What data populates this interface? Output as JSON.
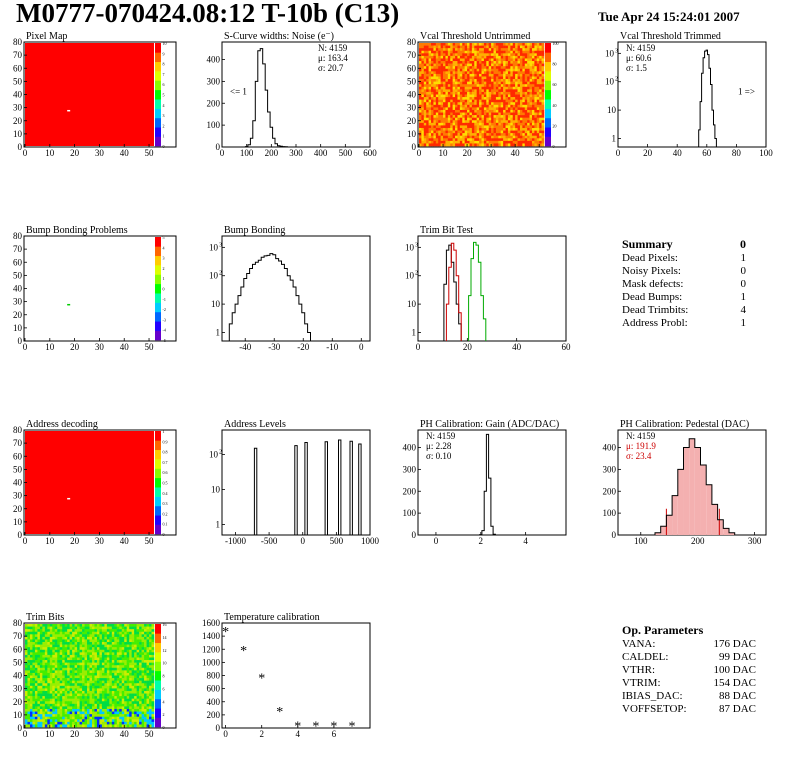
{
  "header": {
    "title": "M0777-070424.08:12 T-10b (C13)",
    "date": "Tue Apr 24 15:24:01 2007"
  },
  "panels": [
    {
      "name": "Pixel Map",
      "type": "heatmap",
      "xticks": [
        "0",
        "10",
        "20",
        "30",
        "40",
        "50"
      ],
      "yticks": [
        "0",
        "10",
        "20",
        "30",
        "40",
        "50",
        "60",
        "70",
        "80"
      ],
      "zticks": [
        "0",
        "1",
        "2",
        "3",
        "4",
        "5",
        "6",
        "7",
        "8",
        "9",
        "10"
      ]
    },
    {
      "name": "S-Curve widths: Noise (e⁻)",
      "type": "histogram",
      "xticks": [
        "0",
        "100",
        "200",
        "300",
        "400",
        "500",
        "600"
      ],
      "yticks": [
        "0",
        "100",
        "200",
        "300",
        "400"
      ],
      "stats": [
        "N:  4159",
        "μ:  163.4",
        "σ:  20.7"
      ],
      "annotation": "<= 1"
    },
    {
      "name": "Vcal Threshold Untrimmed",
      "type": "heatmap",
      "xticks": [
        "0",
        "10",
        "20",
        "30",
        "40",
        "50"
      ],
      "yticks": [
        "0",
        "10",
        "20",
        "30",
        "40",
        "50",
        "60",
        "70",
        "80"
      ],
      "zticks": [
        "0",
        "20",
        "40",
        "60",
        "80",
        "100"
      ]
    },
    {
      "name": "Vcal Threshold Trimmed",
      "type": "histogram",
      "xticks": [
        "0",
        "20",
        "40",
        "60",
        "80",
        "100"
      ],
      "yticks": [
        "1",
        "10",
        "10²",
        "10³"
      ],
      "stats": [
        "N:  4159",
        "μ:  60.6",
        "σ:   1.5"
      ],
      "annotation": "1 =>"
    },
    {
      "name": "Bump Bonding Problems",
      "type": "heatmap",
      "xticks": [
        "0",
        "10",
        "20",
        "30",
        "40",
        "50"
      ],
      "yticks": [
        "0",
        "10",
        "20",
        "30",
        "40",
        "50",
        "60",
        "70",
        "80"
      ],
      "zticks": [
        "-5",
        "-4",
        "-3",
        "-2",
        "-1",
        "0",
        "1",
        "2",
        "3",
        "4",
        "5"
      ]
    },
    {
      "name": "Bump Bonding",
      "type": "histogram",
      "xticks": [
        "-40",
        "-30",
        "-20",
        "-10",
        "0"
      ],
      "yticks": [
        "1",
        "10",
        "10²",
        "10³"
      ]
    },
    {
      "name": "Trim Bit Test",
      "type": "histogram",
      "xticks": [
        "0",
        "20",
        "40",
        "60"
      ],
      "yticks": [
        "1",
        "10",
        "10²",
        "10³"
      ]
    },
    {
      "name": "Address decoding",
      "type": "heatmap",
      "xticks": [
        "0",
        "10",
        "20",
        "30",
        "40",
        "50"
      ],
      "yticks": [
        "0",
        "10",
        "20",
        "30",
        "40",
        "50",
        "60",
        "70",
        "80"
      ],
      "zticks": [
        "0",
        "0.1",
        "0.2",
        "0.3",
        "0.4",
        "0.5",
        "0.6",
        "0.7",
        "0.8",
        "0.9",
        "1"
      ]
    },
    {
      "name": "Address Levels",
      "type": "histogram",
      "xticks": [
        "-1000",
        "-500",
        "0",
        "500",
        "1000"
      ],
      "yticks": [
        "1",
        "10",
        "10²"
      ]
    },
    {
      "name": "PH Calibration: Gain (ADC/DAC)",
      "type": "histogram",
      "xticks": [
        "0",
        "2",
        "4"
      ],
      "yticks": [
        "0",
        "100",
        "200",
        "300",
        "400"
      ],
      "stats": [
        "N:  4159",
        "μ:  2.28",
        "σ:  0.10"
      ]
    },
    {
      "name": "PH Calibration: Pedestal (DAC)",
      "type": "histogram",
      "xticks": [
        "100",
        "200",
        "300"
      ],
      "yticks": [
        "0",
        "100",
        "200",
        "300",
        "400"
      ],
      "stats": [
        "N:  4159",
        "μ:  191.9",
        "σ:  23.4"
      ]
    },
    {
      "name": "Trim Bits",
      "type": "heatmap",
      "xticks": [
        "0",
        "10",
        "20",
        "30",
        "40",
        "50"
      ],
      "yticks": [
        "0",
        "10",
        "20",
        "30",
        "40",
        "50",
        "60",
        "70",
        "80"
      ],
      "zticks": [
        "0",
        "2",
        "4",
        "6",
        "8",
        "10",
        "12",
        "14",
        "16"
      ]
    },
    {
      "name": "Temperature calibration",
      "type": "scatter",
      "xticks": [
        "0",
        "2",
        "4",
        "6"
      ],
      "yticks": [
        "0",
        "200",
        "400",
        "600",
        "800",
        "1000",
        "1200",
        "1400",
        "1600"
      ]
    }
  ],
  "chart_data": [
    {
      "type": "heatmap",
      "title": "Pixel Map",
      "x_range": [
        0,
        52
      ],
      "y_range": [
        0,
        80
      ],
      "fill": "uniform 10",
      "outlier": {
        "x": 17,
        "y": 28
      }
    },
    {
      "type": "bar",
      "title": "S-Curve widths: Noise (e⁻)",
      "x": [
        100,
        110,
        120,
        130,
        140,
        150,
        160,
        170,
        180,
        190,
        200,
        210,
        220,
        230,
        240,
        250,
        260
      ],
      "values": [
        2,
        10,
        40,
        120,
        300,
        440,
        450,
        380,
        260,
        160,
        90,
        40,
        15,
        6,
        3,
        2,
        1
      ],
      "xlim": [
        0,
        600
      ],
      "ylim": [
        0,
        480
      ]
    },
    {
      "type": "heatmap",
      "title": "Vcal Threshold Untrimmed",
      "x_range": [
        0,
        52
      ],
      "y_range": [
        0,
        80
      ],
      "z_range": [
        0,
        110
      ]
    },
    {
      "type": "bar",
      "title": "Vcal Threshold Trimmed",
      "x": [
        55,
        56,
        57,
        58,
        59,
        60,
        61,
        62,
        63,
        64,
        65,
        66
      ],
      "values": [
        2,
        20,
        200,
        700,
        1200,
        1300,
        900,
        300,
        80,
        10,
        3,
        1
      ],
      "xlim": [
        0,
        100
      ],
      "log": true
    },
    {
      "type": "heatmap",
      "title": "Bump Bonding Problems",
      "x_range": [
        0,
        52
      ],
      "y_range": [
        0,
        80
      ],
      "outlier": {
        "x": 17,
        "y": 28
      }
    },
    {
      "type": "bar",
      "title": "Bump Bonding",
      "x": [
        -45,
        -44,
        -43,
        -42,
        -41,
        -40,
        -39,
        -38,
        -37,
        -36,
        -35,
        -34,
        -33,
        -32,
        -31,
        -30,
        -29,
        -28,
        -27,
        -26,
        -25,
        -24,
        -23,
        -22,
        -21,
        -20,
        -19,
        -18
      ],
      "values": [
        2,
        5,
        10,
        20,
        40,
        80,
        120,
        180,
        250,
        300,
        350,
        450,
        500,
        520,
        600,
        550,
        400,
        330,
        250,
        180,
        100,
        70,
        40,
        20,
        10,
        5,
        2,
        1
      ],
      "xlim": [
        -48,
        3
      ],
      "log": true
    },
    {
      "type": "bar",
      "title": "Trim Bit Test",
      "series": [
        {
          "color": "#000000",
          "x": [
            11,
            12,
            13,
            14,
            15,
            16,
            17
          ],
          "values": [
            50,
            800,
            1200,
            300,
            60,
            10,
            2
          ]
        },
        {
          "color": "#cc0000",
          "x": [
            12,
            13,
            14,
            15,
            16,
            17
          ],
          "values": [
            10,
            200,
            1400,
            800,
            100,
            5
          ]
        },
        {
          "color": "#00aa00",
          "x": [
            21,
            22,
            23,
            24,
            25,
            26,
            27
          ],
          "values": [
            20,
            400,
            1500,
            1200,
            300,
            20,
            3
          ]
        }
      ],
      "xlim": [
        0,
        60
      ],
      "log": true
    },
    {
      "type": "heatmap",
      "title": "Address decoding",
      "x_range": [
        0,
        52
      ],
      "y_range": [
        0,
        80
      ],
      "fill": "uniform 1",
      "outlier": {
        "x": 17,
        "y": 28
      }
    },
    {
      "type": "bar",
      "title": "Address Levels",
      "peaks": [
        -700,
        -100,
        50,
        350,
        550,
        720,
        850
      ],
      "peak_values": [
        150,
        180,
        220,
        230,
        260,
        240,
        200
      ],
      "xlim": [
        -1200,
        1000
      ],
      "log": true
    },
    {
      "type": "bar",
      "title": "PH Calibration: Gain (ADC/DAC)",
      "x": [
        2.0,
        2.1,
        2.2,
        2.3,
        2.4,
        2.5,
        2.6
      ],
      "values": [
        2,
        20,
        200,
        460,
        260,
        40,
        3
      ],
      "xlim": [
        -0.8,
        5.8
      ],
      "ylim": [
        0,
        480
      ]
    },
    {
      "type": "bar",
      "title": "PH Calibration: Pedestal (DAC)",
      "x": [
        130,
        140,
        150,
        160,
        170,
        180,
        190,
        200,
        210,
        220,
        230,
        240,
        250,
        260
      ],
      "values": [
        10,
        40,
        90,
        180,
        300,
        400,
        440,
        400,
        320,
        230,
        140,
        70,
        30,
        10
      ],
      "xlim": [
        60,
        320
      ],
      "ylim": [
        0,
        480
      ]
    },
    {
      "type": "heatmap",
      "title": "Trim Bits",
      "x_range": [
        0,
        52
      ],
      "y_range": [
        0,
        80
      ],
      "z_range": [
        0,
        16
      ]
    },
    {
      "type": "scatter",
      "title": "Temperature calibration",
      "x": [
        0,
        1,
        2,
        3,
        4,
        5,
        6,
        7
      ],
      "y": [
        1480,
        1190,
        770,
        260,
        40,
        40,
        40,
        40
      ],
      "xlim": [
        -0.2,
        8
      ],
      "ylim": [
        0,
        1600
      ]
    }
  ],
  "summary": {
    "title": "Summary",
    "value": "0",
    "rows": [
      {
        "label": "Dead Pixels:",
        "value": "1"
      },
      {
        "label": "Noisy Pixels:",
        "value": "0"
      },
      {
        "label": "Mask defects:",
        "value": "0"
      },
      {
        "label": "Dead Bumps:",
        "value": "1"
      },
      {
        "label": "Dead Trimbits:",
        "value": "4"
      },
      {
        "label": "Address Probl:",
        "value": "1"
      }
    ]
  },
  "op_params": {
    "title": "Op. Parameters",
    "rows": [
      {
        "label": "VANA:",
        "value": "176 DAC"
      },
      {
        "label": "CALDEL:",
        "value": "99 DAC"
      },
      {
        "label": "VTHR:",
        "value": "100 DAC"
      },
      {
        "label": "VTRIM:",
        "value": "154 DAC"
      },
      {
        "label": "IBIAS_DAC:",
        "value": "88 DAC"
      },
      {
        "label": "VOFFSETOP:",
        "value": "87 DAC"
      }
    ]
  }
}
